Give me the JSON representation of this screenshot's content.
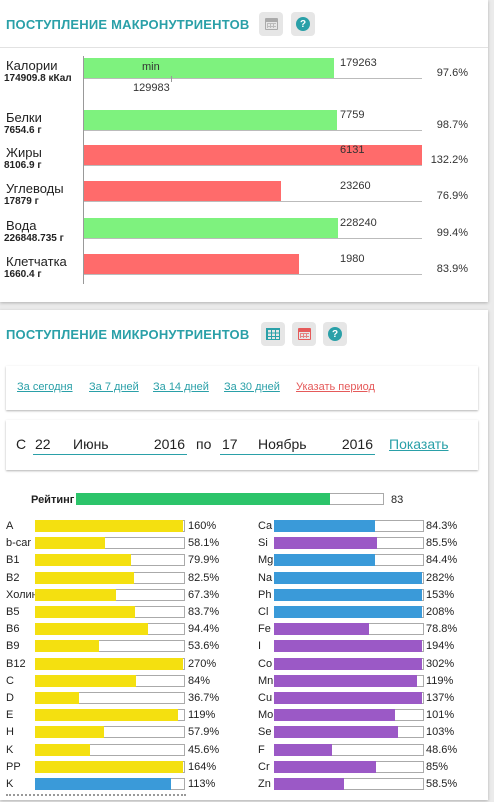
{
  "macro": {
    "title": "ПОСТУПЛЕНИЕ МАКРОНУТРИЕНТОВ",
    "rows": [
      {
        "name": "Калории",
        "value": "174909.8 кКал",
        "pct": "97.6%",
        "tick": "179263",
        "fill": 0.976,
        "color": "#7ef27e",
        "inner": "min",
        "min": "129983"
      },
      {
        "name": "Белки",
        "value": "7654.6 г",
        "pct": "98.7%",
        "tick": "7759",
        "fill": 0.987,
        "color": "#7ef27e"
      },
      {
        "name": "Жиры",
        "value": "8106.9 г",
        "pct": "132.2%",
        "tick": "6131",
        "fill": 1.322,
        "color": "#ff6b6b"
      },
      {
        "name": "Углеводы",
        "value": "17879 г",
        "pct": "76.9%",
        "tick": "23260",
        "fill": 0.769,
        "color": "#ff6b6b"
      },
      {
        "name": "Вода",
        "value": "226848.735 г",
        "pct": "99.4%",
        "tick": "228240",
        "fill": 0.994,
        "color": "#7ef27e"
      },
      {
        "name": "Клетчатка",
        "value": "1660.4 г",
        "pct": "83.9%",
        "tick": "1980",
        "fill": 0.839,
        "color": "#ff6b6b"
      }
    ]
  },
  "micro": {
    "title": "ПОСТУПЛЕНИЕ МИКРОНУТРИЕНТОВ",
    "periods": [
      "За сегодня",
      "За 7 дней",
      "За 14 дней",
      "За 30 дней",
      "Указать период"
    ],
    "range": {
      "from_label": "С",
      "from_day": "22",
      "from_month": "Июнь",
      "from_year": "2016",
      "to_label": "по",
      "to_day": "17",
      "to_month": "Ноябрь",
      "to_year": "2016",
      "show": "Показать"
    },
    "rating": {
      "label": "Рейтинг",
      "value": "83",
      "fill": 0.83
    },
    "vitamins": [
      {
        "name": "A",
        "pct": "160%",
        "fill": 1.6,
        "color": "#f4e010"
      },
      {
        "name": "b-car",
        "pct": "58.1%",
        "fill": 0.581,
        "color": "#f4e010"
      },
      {
        "name": "B1",
        "pct": "79.9%",
        "fill": 0.799,
        "color": "#f4e010"
      },
      {
        "name": "B2",
        "pct": "82.5%",
        "fill": 0.825,
        "color": "#f4e010"
      },
      {
        "name": "Холин",
        "pct": "67.3%",
        "fill": 0.673,
        "color": "#f4e010"
      },
      {
        "name": "B5",
        "pct": "83.7%",
        "fill": 0.837,
        "color": "#f4e010"
      },
      {
        "name": "B6",
        "pct": "94.4%",
        "fill": 0.944,
        "color": "#f4e010"
      },
      {
        "name": "B9",
        "pct": "53.6%",
        "fill": 0.536,
        "color": "#f4e010"
      },
      {
        "name": "B12",
        "pct": "270%",
        "fill": 2.7,
        "color": "#f4e010"
      },
      {
        "name": "C",
        "pct": "84%",
        "fill": 0.84,
        "color": "#f4e010"
      },
      {
        "name": "D",
        "pct": "36.7%",
        "fill": 0.367,
        "color": "#f4e010"
      },
      {
        "name": "E",
        "pct": "119%",
        "fill": 1.19,
        "color": "#f4e010"
      },
      {
        "name": "H",
        "pct": "57.9%",
        "fill": 0.579,
        "color": "#f4e010"
      },
      {
        "name": "K",
        "pct": "45.6%",
        "fill": 0.456,
        "color": "#f4e010"
      },
      {
        "name": "PP",
        "pct": "164%",
        "fill": 1.64,
        "color": "#f4e010"
      },
      {
        "name": "K",
        "pct": "113%",
        "fill": 1.13,
        "color": "#3a9ad9"
      }
    ],
    "minerals": [
      {
        "name": "Ca",
        "pct": "84.3%",
        "fill": 0.843,
        "color": "#3a9ad9"
      },
      {
        "name": "Si",
        "pct": "85.5%",
        "fill": 0.855,
        "color": "#9b59c6"
      },
      {
        "name": "Mg",
        "pct": "84.4%",
        "fill": 0.844,
        "color": "#3a9ad9"
      },
      {
        "name": "Na",
        "pct": "282%",
        "fill": 2.82,
        "color": "#3a9ad9"
      },
      {
        "name": "Ph",
        "pct": "153%",
        "fill": 1.53,
        "color": "#3a9ad9"
      },
      {
        "name": "Cl",
        "pct": "208%",
        "fill": 2.08,
        "color": "#3a9ad9"
      },
      {
        "name": "Fe",
        "pct": "78.8%",
        "fill": 0.788,
        "color": "#9b59c6"
      },
      {
        "name": "I",
        "pct": "194%",
        "fill": 1.94,
        "color": "#9b59c6"
      },
      {
        "name": "Co",
        "pct": "302%",
        "fill": 3.02,
        "color": "#9b59c6"
      },
      {
        "name": "Mn",
        "pct": "119%",
        "fill": 1.19,
        "color": "#9b59c6"
      },
      {
        "name": "Cu",
        "pct": "137%",
        "fill": 1.37,
        "color": "#9b59c6"
      },
      {
        "name": "Mo",
        "pct": "101%",
        "fill": 1.01,
        "color": "#9b59c6"
      },
      {
        "name": "Se",
        "pct": "103%",
        "fill": 1.03,
        "color": "#9b59c6"
      },
      {
        "name": "F",
        "pct": "48.6%",
        "fill": 0.486,
        "color": "#9b59c6"
      },
      {
        "name": "Cr",
        "pct": "85%",
        "fill": 0.85,
        "color": "#9b59c6"
      },
      {
        "name": "Zn",
        "pct": "58.5%",
        "fill": 0.585,
        "color": "#9b59c6"
      }
    ]
  }
}
